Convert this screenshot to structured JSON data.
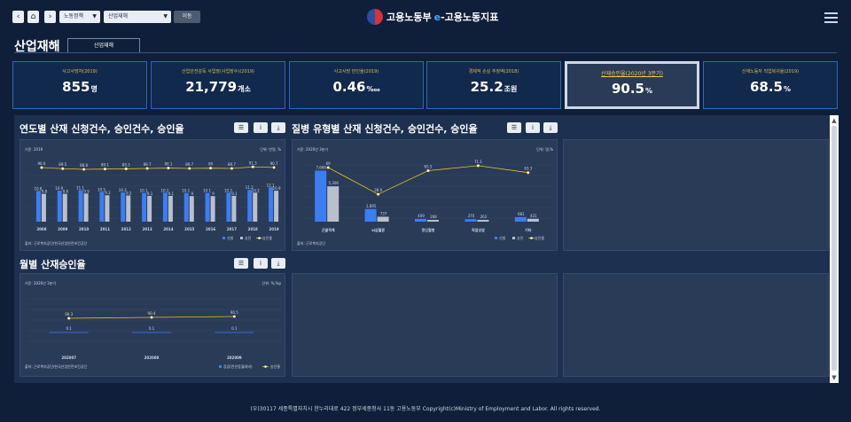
{
  "topbar": {
    "select1": "노동정책",
    "select2": "산업재해",
    "go_label": "이동",
    "logo_main": "고용노동부",
    "logo_e": "e",
    "logo_sub": "-고용노동지표"
  },
  "page": {
    "title": "산업재해",
    "tab": "산업재해"
  },
  "kpis": [
    {
      "label": "사고사망자(2019)",
      "value": "855",
      "unit": "명"
    },
    {
      "label": "산업안전감독 사업장(사업장수)(2019)",
      "value": "21,779",
      "unit": "개소"
    },
    {
      "label": "사고사망 만인율(2019)",
      "value": "0.46",
      "unit": "‱"
    },
    {
      "label": "경제적 손실 추정액(2018)",
      "value": "25.2",
      "unit": "조원"
    },
    {
      "label": "산재승인율(2020년 3분기)",
      "value": "90.5",
      "unit": "%"
    },
    {
      "label": "산재노동자 직업복귀율(2019)",
      "value": "68.5",
      "unit": "%"
    }
  ],
  "sections": {
    "s1_title": "연도별 산재 신청건수, 승인건수, 승인율",
    "s2_title": "질병 유형별 산재 신청건수, 승인건수, 승인율",
    "s3_title": "월별 산재승인율"
  },
  "footer": "(우)30117 세종특별자치시 한누리대로 422 정부세종청사 11동 고용노동부 Copyright(c)Ministry of Employment and Labor. All rights reserved.",
  "chart_data": [
    {
      "type": "bar",
      "basis": "기준: 2019",
      "unit_note": "단위: 만명, %",
      "categories": [
        "2008",
        "2009",
        "2010",
        "2011",
        "2012",
        "2013",
        "2014",
        "2015",
        "2016",
        "2017",
        "2018",
        "2019"
      ],
      "series": [
        {
          "name": "신청",
          "values": [
            10.8,
            10.9,
            11.1,
            10.5,
            10.3,
            10.1,
            10.2,
            10.1,
            10.1,
            10.2,
            11.2,
            12.1
          ],
          "color": "#3d7df2"
        },
        {
          "name": "승인",
          "values": [
            9.8,
            9.8,
            9.9,
            9.3,
            9.2,
            9.1,
            9.1,
            9.0,
            9.0,
            9.1,
            10.2,
            10.9
          ],
          "color": "#b9c0cc"
        },
        {
          "name": "승인율",
          "values": [
            90.6,
            89.5,
            88.8,
            89.1,
            89.3,
            89.7,
            90.1,
            89.7,
            90.0,
            89.7,
            91.3,
            90.7
          ],
          "color": "#e8c21a"
        }
      ],
      "source": "출처: 근로복지공단/한국산업안전보건공단"
    },
    {
      "type": "bar",
      "basis": "기준: 2020년 3분기",
      "unit_note": "단위: 명,%",
      "categories": [
        "근골격계",
        "뇌심혈관",
        "정신질병",
        "직업성암",
        "기타"
      ],
      "series": [
        {
          "name": "신청",
          "values": [
            7666,
            1895,
            409,
            370,
            681
          ],
          "labels": [
            "7,666",
            "1,895",
            "409",
            "370",
            "681"
          ],
          "color": "#3d7df2"
        },
        {
          "name": "승인",
          "values": [
            5306,
            737,
            268,
            263,
            431
          ],
          "labels": [
            "5,306",
            "737",
            "268",
            "263",
            "431"
          ],
          "color": "#b9c0cc"
        },
        {
          "name": "승인율",
          "values": [
            69.0,
            38.9,
            65.5,
            71.1,
            63.3
          ],
          "labels": [
            "69",
            "38.9",
            "65.5",
            "71.1",
            "63.3"
          ],
          "color": "#e8c21a"
        }
      ],
      "source": "출처: 근로복지공단"
    },
    {
      "type": "line",
      "basis": "기준: 2020년 3분기",
      "unit_note": "단위: %,%p",
      "categories": [
        "202007",
        "202008",
        "202009"
      ],
      "series": [
        {
          "name": "승인율",
          "values": [
            90.3,
            90.4,
            90.5
          ],
          "color": "#e8c21a"
        },
        {
          "name": "증감(전년동월대비)",
          "values": [
            0.1,
            0.1,
            0.1
          ],
          "color": "#3d7df2"
        }
      ],
      "source": "출처: 근로복지공단/한국산업안전보건공단"
    }
  ]
}
